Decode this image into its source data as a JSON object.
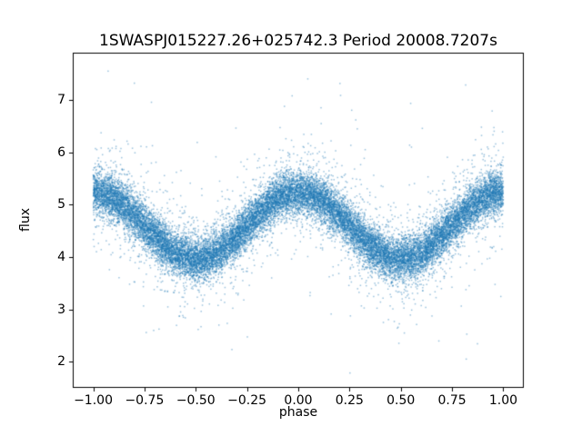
{
  "chart_data": {
    "type": "scatter",
    "title": "1SWASPJ015227.26+025742.3 Period 20008.7207s",
    "xlabel": "phase",
    "ylabel": "flux",
    "xlim": [
      -1.1,
      1.1
    ],
    "ylim": [
      1.5,
      7.9
    ],
    "grid": false,
    "legend": null,
    "x_ticks": [
      {
        "value": -1.0,
        "label": "−1.00"
      },
      {
        "value": -0.75,
        "label": "−0.75"
      },
      {
        "value": -0.5,
        "label": "−0.50"
      },
      {
        "value": -0.25,
        "label": "−0.25"
      },
      {
        "value": 0.0,
        "label": "0.00"
      },
      {
        "value": 0.25,
        "label": "0.25"
      },
      {
        "value": 0.5,
        "label": "0.50"
      },
      {
        "value": 0.75,
        "label": "0.75"
      },
      {
        "value": 1.0,
        "label": "1.00"
      }
    ],
    "y_ticks": [
      {
        "value": 2,
        "label": "2"
      },
      {
        "value": 3,
        "label": "3"
      },
      {
        "value": 4,
        "label": "4"
      },
      {
        "value": 5,
        "label": "5"
      },
      {
        "value": 6,
        "label": "6"
      },
      {
        "value": 7,
        "label": "7"
      }
    ],
    "marker_color": "#1f77b4",
    "marker_alpha": 0.45,
    "marker_size": 1.5,
    "mean_curve": {
      "phase": [
        -1.0,
        -0.75,
        -0.5,
        -0.25,
        0.0,
        0.25,
        0.5,
        0.75,
        1.0
      ],
      "flux": [
        5.25,
        4.65,
        3.95,
        4.65,
        5.25,
        4.65,
        3.95,
        4.65,
        5.25
      ]
    },
    "series_model": {
      "description": "folded light curve: flux = mean + amplitude*cos(2*pi*phase) + noise",
      "n_points": 22000,
      "phase_range": [
        -1,
        1
      ],
      "mean_flux": 4.6,
      "amplitude": 0.64,
      "noise_sigma": 0.2,
      "broad_fraction": 0.12,
      "broad_sigma": 0.5,
      "outlier_fraction": 0.012,
      "outlier_sigma": 1.1,
      "seed": 42
    }
  }
}
